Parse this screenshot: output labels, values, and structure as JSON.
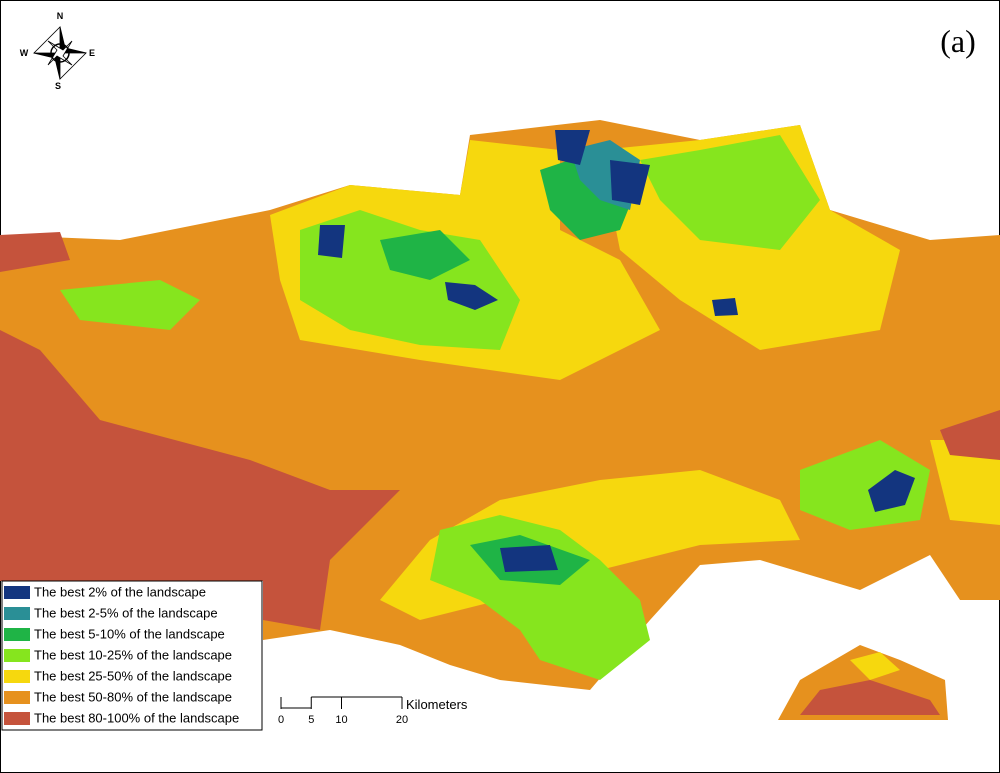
{
  "panel_label": "(a)",
  "compass": {
    "north": "N",
    "south": "S",
    "east": "E",
    "west": "W"
  },
  "legend": {
    "items": [
      {
        "label": "The best 2% of the landscape",
        "color": "#13357f"
      },
      {
        "label": "The best 2-5% of the landscape",
        "color": "#2a8f96"
      },
      {
        "label": "The best 5-10% of the landscape",
        "color": "#1fb446"
      },
      {
        "label": "The best 10-25% of the landscape",
        "color": "#86e51e"
      },
      {
        "label": "The best 25-50% of the landscape",
        "color": "#f6d80e"
      },
      {
        "label": "The best 50-80% of the landscape",
        "color": "#e6911e"
      },
      {
        "label": "The best 80-100% of the landscape",
        "color": "#c5533c"
      }
    ]
  },
  "scale_bar": {
    "ticks": [
      0,
      5,
      10,
      20
    ],
    "unit": "Kilometers"
  }
}
